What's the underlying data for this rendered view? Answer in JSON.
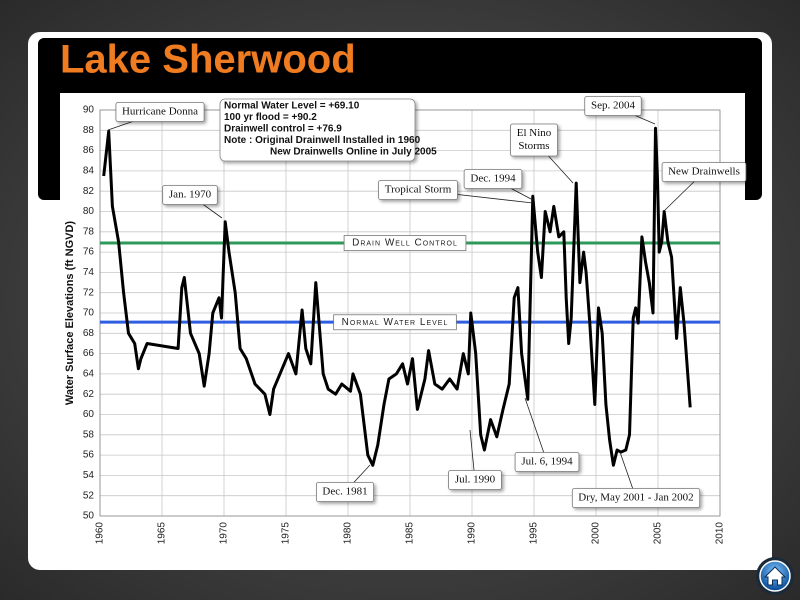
{
  "chart_data": {
    "type": "line",
    "title": "Lake Sherwood",
    "y_label": "Water Surface Elevations  (ft NGVD)",
    "color": "#000000",
    "x": [
      1960.3,
      1960.7,
      1961,
      1961.5,
      1961.9,
      1962.3,
      1962.8,
      1963.1,
      1963.3,
      1963.8,
      1966.3,
      1966.6,
      1966.8,
      1967.3,
      1968,
      1968.4,
      1968.8,
      1969.1,
      1969.6,
      1969.8,
      1970.1,
      1970.4,
      1970.9,
      1971.3,
      1971.8,
      1972.5,
      1973.3,
      1973.7,
      1974,
      1975.2,
      1975.8,
      1976.3,
      1976.6,
      1977,
      1977.4,
      1978,
      1978.4,
      1979,
      1979.5,
      1980.2,
      1980.4,
      1981,
      1981.6,
      1982,
      1982.4,
      1982.9,
      1983.3,
      1983.9,
      1984.4,
      1984.8,
      1985.2,
      1985.6,
      1986.2,
      1986.5,
      1987,
      1987.6,
      1988.2,
      1988.8,
      1989.3,
      1989.7,
      1989.9,
      1990.3,
      1990.7,
      1991,
      1991.5,
      1992,
      1992.5,
      1993,
      1993.4,
      1993.7,
      1994,
      1994.5,
      1994.9,
      1995.3,
      1995.6,
      1995.9,
      1996.3,
      1996.6,
      1997,
      1997.4,
      1997.6,
      1997.8,
      1998,
      1998.4,
      1998.7,
      1999,
      1999.2,
      1999.5,
      1999.9,
      2000.2,
      2000.5,
      2000.8,
      2001.1,
      2001.4,
      2001.7,
      2002,
      2002.4,
      2002.7,
      2003,
      2003.2,
      2003.4,
      2003.7,
      2004,
      2004.3,
      2004.6,
      2004.8,
      2004.95,
      2005.1,
      2005.3,
      2005.5,
      2005.8,
      2006.1,
      2006.5,
      2006.8,
      2007.1,
      2007.6
    ],
    "values": [
      83.5,
      87.9,
      80.5,
      77,
      72,
      68,
      67,
      64.5,
      65.5,
      67,
      66.5,
      72.5,
      73.5,
      68,
      66,
      62.8,
      66,
      70,
      71.5,
      69.5,
      79,
      76,
      72,
      66.5,
      65.5,
      63,
      62,
      60,
      62.5,
      66,
      64,
      70.3,
      66.5,
      65,
      73,
      64,
      62.5,
      62,
      63,
      62.3,
      64,
      62,
      56,
      55,
      57,
      61,
      63.5,
      64,
      65,
      63,
      65.5,
      60.5,
      63.5,
      66.3,
      63,
      62.5,
      63.5,
      62.5,
      66,
      64,
      70,
      66,
      58,
      56.5,
      59.5,
      57.8,
      60.5,
      63,
      71.5,
      72.5,
      66,
      61.5,
      81.5,
      76,
      73.5,
      80,
      78,
      80.5,
      77.5,
      78,
      71.5,
      67,
      69.5,
      82.8,
      73,
      76,
      74,
      69,
      61,
      70.5,
      68,
      61,
      57.5,
      55,
      56.5,
      56.3,
      56.5,
      58,
      69.5,
      70.5,
      69,
      77.5,
      75,
      73,
      70,
      88.2,
      83.5,
      76,
      77,
      80,
      77,
      75.5,
      67.5,
      72.5,
      69,
      60.7
    ],
    "xlim": [
      1960,
      2010
    ],
    "xticks": [
      1960,
      1965,
      1970,
      1975,
      1980,
      1985,
      1990,
      1995,
      2000,
      2005,
      2010
    ],
    "ylim": [
      50,
      90
    ],
    "yticks": [
      50,
      52,
      54,
      56,
      58,
      60,
      62,
      64,
      66,
      68,
      70,
      72,
      74,
      76,
      78,
      80,
      82,
      84,
      86,
      88,
      90
    ],
    "grid": true,
    "reference_lines": [
      {
        "label": "Normal Water Level",
        "value": 69.1,
        "color": "#2f5fe0"
      },
      {
        "label": "Drain Well Control",
        "value": 76.9,
        "color": "#2e9a5a"
      }
    ],
    "note_lines": [
      "Normal Water Level = +69.10",
      "100 yr flood = +90.2",
      "Drainwell control = +76.9",
      "Note : Original Drainwell Installed  in 1960",
      "New Drainwells Online in July 2005"
    ],
    "annotations": [
      [
        "Hurricane Donna"
      ],
      [
        "Jan. 1970"
      ],
      [
        "Dec. 1981"
      ],
      [
        "Jul. 1990"
      ],
      [
        "Tropical Storm"
      ],
      [
        "Dec. 1994"
      ],
      [
        "El Nino",
        "Storms"
      ],
      [
        "Jul. 6, 1994"
      ],
      [
        "Sep. 2004"
      ],
      [
        "New Drainwells"
      ],
      [
        "Dry, May 2001 - Jan 2002"
      ]
    ]
  }
}
